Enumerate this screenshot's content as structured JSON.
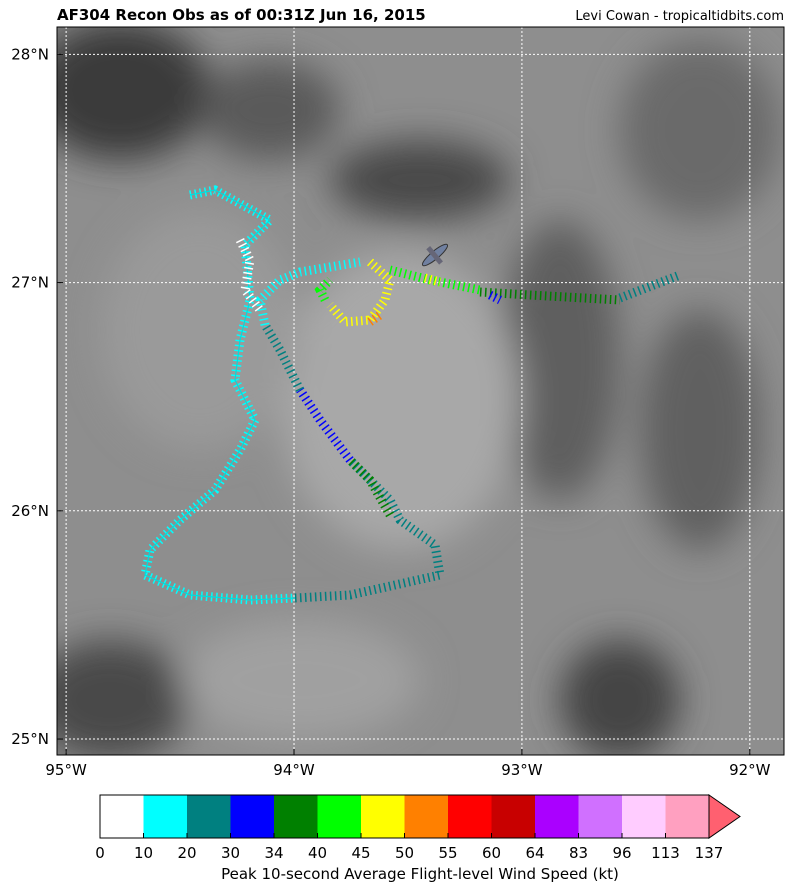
{
  "header": {
    "title": "AF304 Recon Obs as of 00:31Z Jun 16, 2015",
    "credit": "Levi Cowan - tropicaltidbits.com"
  },
  "map": {
    "lonlim": [
      -95.04,
      -91.85
    ],
    "latlim": [
      24.93,
      28.12
    ],
    "lonticks": [
      {
        "value": -95,
        "label": "95°W"
      },
      {
        "value": -94,
        "label": "94°W"
      },
      {
        "value": -93,
        "label": "93°W"
      },
      {
        "value": -92,
        "label": "92°W"
      }
    ],
    "latticks": [
      {
        "value": 28,
        "label": "28°N"
      },
      {
        "value": 27,
        "label": "27°N"
      },
      {
        "value": 26,
        "label": "26°N"
      },
      {
        "value": 25,
        "label": "25°N"
      }
    ],
    "grid": true
  },
  "colorbar": {
    "label": "Peak 10-second Average Flight-level Wind Speed (kt)",
    "bounds": [
      0,
      10,
      20,
      30,
      34,
      40,
      45,
      50,
      55,
      60,
      64,
      83,
      96,
      113,
      137
    ],
    "colors": [
      "#ffffff",
      "#00ffff",
      "#008080",
      "#0000ff",
      "#008000",
      "#00ff00",
      "#ffff00",
      "#ff8000",
      "#ff0000",
      "#c80000",
      "#aa00ff",
      "#d070ff",
      "#ffccff",
      "#ffa0c0"
    ],
    "extend_color": "#ff6070"
  }
}
